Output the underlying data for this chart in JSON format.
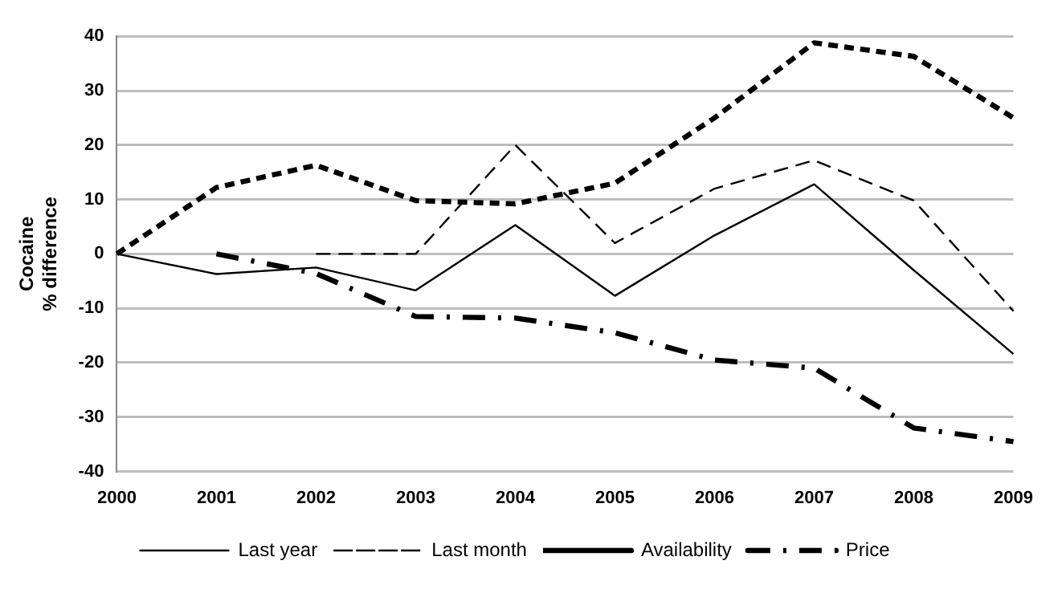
{
  "chart_data": {
    "type": "line",
    "ylabel": "Cocaine\n% difference",
    "categories": [
      "2000",
      "2001",
      "2002",
      "2003",
      "2004",
      "2005",
      "2006",
      "2007",
      "2008",
      "2009"
    ],
    "series": [
      {
        "name": "Last year",
        "color": "#000000",
        "line_style": "solid",
        "values": [
          0,
          -3.7,
          -2.5,
          -6.7,
          5.3,
          -7.7,
          3.4,
          12.8,
          -3,
          -18.4
        ]
      },
      {
        "name": "Last month",
        "color": "#000000",
        "line_style": "dashed",
        "values": [
          null,
          null,
          0,
          0,
          20,
          2,
          12,
          17.2,
          9.8,
          -10.5
        ]
      },
      {
        "name": "Availability",
        "color": "#000000",
        "line_style": "dotted",
        "values": [
          0,
          12.2,
          16.3,
          9.8,
          9.2,
          13,
          25,
          38.8,
          36.3,
          25
        ]
      },
      {
        "name": "Price",
        "color": "#000000",
        "line_style": "dashdot",
        "values": [
          null,
          0,
          -3.6,
          -11.5,
          -11.8,
          -14.5,
          -19.5,
          -21,
          -32,
          -34.5
        ]
      }
    ],
    "ylim": [
      -40,
      40
    ],
    "yticks": [
      -40,
      -30,
      -20,
      -10,
      0,
      10,
      20,
      30,
      40
    ],
    "grid": "y",
    "legend": "bottom",
    "marker": "none"
  }
}
